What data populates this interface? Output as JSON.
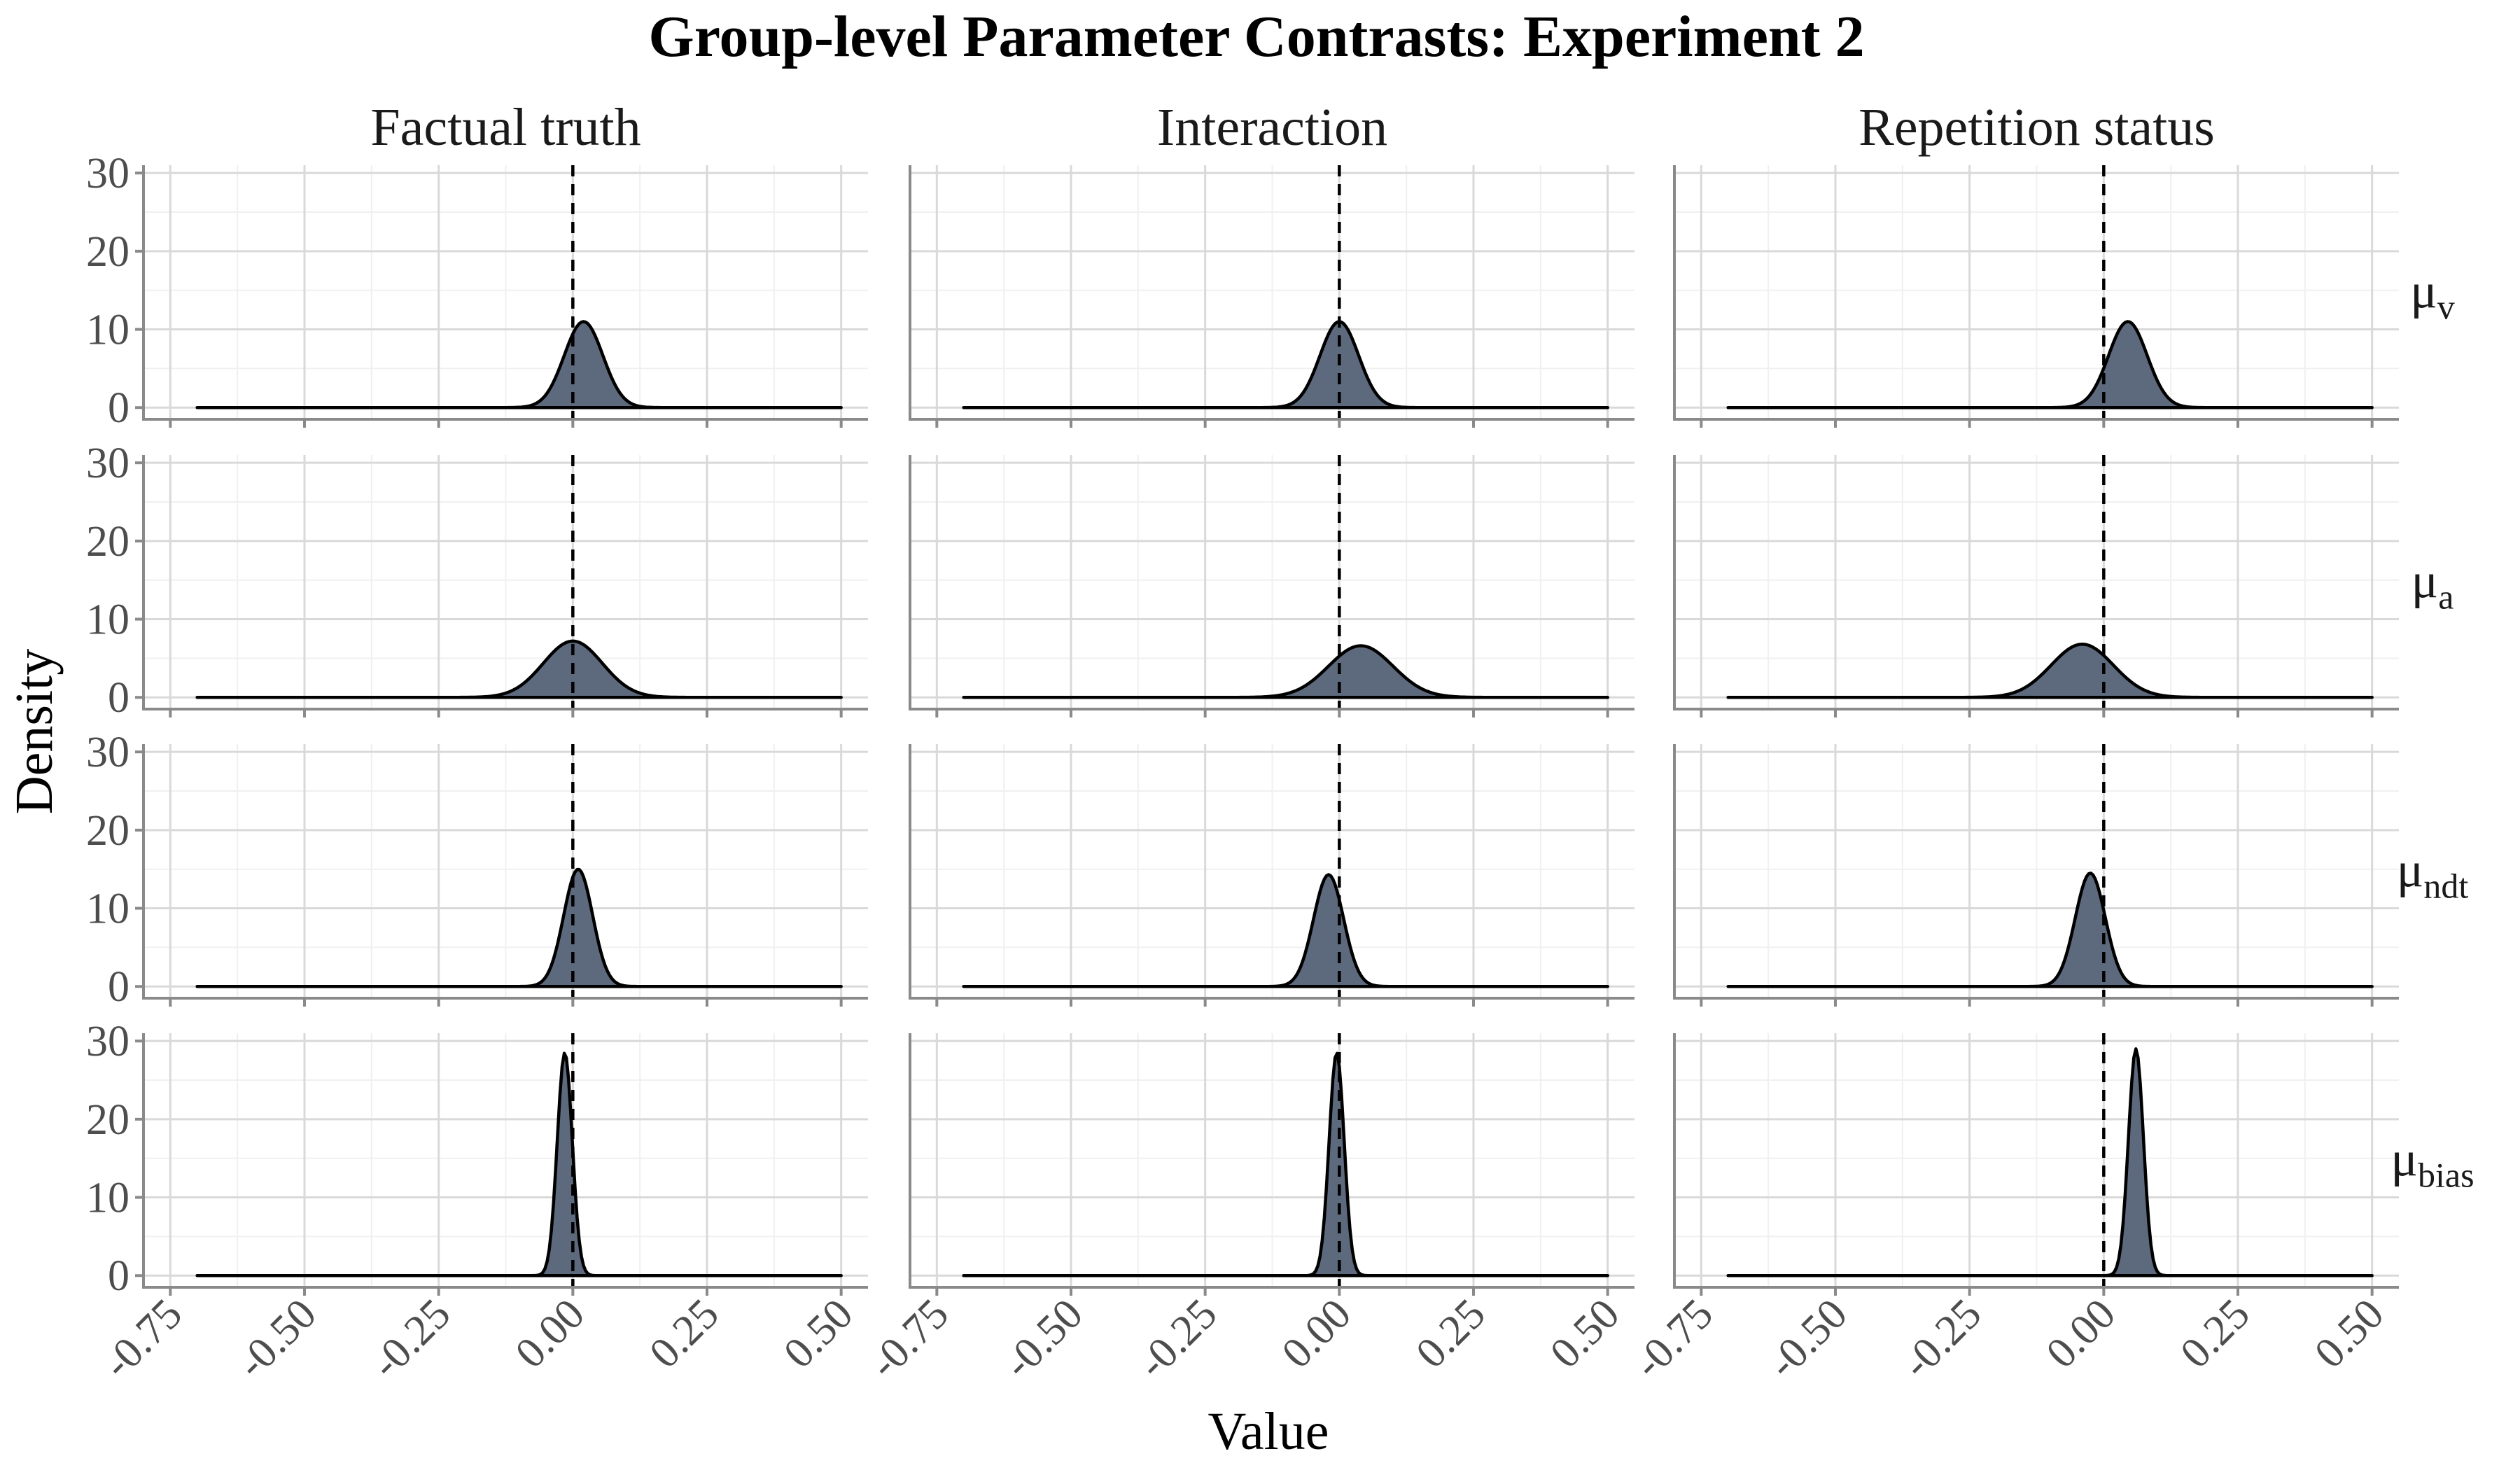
{
  "chart_data": {
    "type": "area",
    "title": "Group-level Parameter Contrasts: Experiment 2",
    "xlabel": "Value",
    "ylabel": "Density",
    "xlim": [
      -0.8,
      0.55
    ],
    "ylim": [
      -1.5,
      31
    ],
    "x_ticks": [
      "-0.75",
      "-0.50",
      "-0.25",
      "0.00",
      "0.25",
      "0.50"
    ],
    "x_tick_values": [
      -0.75,
      -0.5,
      -0.25,
      0.0,
      0.25,
      0.5
    ],
    "y_ticks": [
      "0",
      "10",
      "20",
      "30"
    ],
    "y_tick_values": [
      0,
      10,
      20,
      30
    ],
    "density_range": [
      -0.7,
      0.5
    ],
    "reference_line_x": 0,
    "grid": true,
    "fill_color": "#5d6a7d",
    "columns": [
      "Factual truth",
      "Interaction",
      "Repetition status"
    ],
    "rows": [
      {
        "base": "μ",
        "sub": "v"
      },
      {
        "base": "μ",
        "sub": "a"
      },
      {
        "base": "μ",
        "sub": "ndt"
      },
      {
        "base": "μ",
        "sub": "bias"
      }
    ],
    "panels": [
      [
        {
          "mode": 0.02,
          "peak": 11,
          "sd": 0.036
        },
        {
          "mode": 0.0,
          "peak": 7.2,
          "sd": 0.055
        },
        {
          "mode": 0.01,
          "peak": 15,
          "sd": 0.027
        },
        {
          "mode": -0.015,
          "peak": 28.5,
          "sd": 0.014
        }
      ],
      [
        {
          "mode": 0.0,
          "peak": 11,
          "sd": 0.036
        },
        {
          "mode": 0.04,
          "peak": 6.6,
          "sd": 0.06
        },
        {
          "mode": -0.02,
          "peak": 14.3,
          "sd": 0.028
        },
        {
          "mode": -0.005,
          "peak": 28.5,
          "sd": 0.014
        }
      ],
      [
        {
          "mode": 0.045,
          "peak": 11,
          "sd": 0.036
        },
        {
          "mode": -0.04,
          "peak": 6.8,
          "sd": 0.058
        },
        {
          "mode": -0.025,
          "peak": 14.5,
          "sd": 0.028
        },
        {
          "mode": 0.06,
          "peak": 29,
          "sd": 0.014
        }
      ]
    ]
  }
}
